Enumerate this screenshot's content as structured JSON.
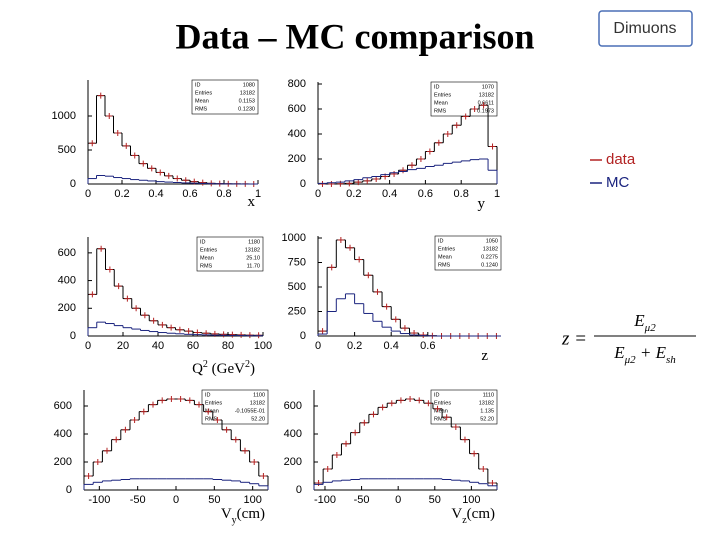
{
  "title": "Data – MC comparison",
  "badge": "Dimuons",
  "formula": {
    "lhs": "z =",
    "numerator": [
      "E",
      "μ2"
    ],
    "denominator": [
      "E",
      "μ2",
      " + E",
      "sh"
    ]
  },
  "chart_data": [
    {
      "type": "histogram",
      "xlabel": [
        "x"
      ],
      "xlabel_script": "sub",
      "bins": [
        0,
        0.05,
        0.1,
        0.15,
        0.2,
        0.25,
        0.3,
        0.35,
        0.4,
        0.45,
        0.5,
        0.55,
        0.6,
        0.65,
        0.7,
        0.75,
        0.8,
        0.85,
        0.9,
        0.95,
        1
      ],
      "series": [
        {
          "name": "data",
          "color": "#b22222",
          "values": [
            600,
            1300,
            1000,
            750,
            560,
            420,
            300,
            230,
            170,
            120,
            80,
            55,
            35,
            20,
            10,
            5,
            3,
            2,
            1,
            0
          ]
        },
        {
          "name": "MC",
          "color": "#1a237e",
          "values": [
            80,
            125,
            115,
            95,
            80,
            65,
            55,
            45,
            35,
            28,
            22,
            16,
            12,
            8,
            5,
            3,
            2,
            1,
            0,
            0
          ]
        }
      ],
      "xlim": [
        0,
        1
      ],
      "xticks": [
        0,
        0.2,
        0.4,
        0.6,
        0.8,
        1
      ],
      "ylim": [
        0,
        1500
      ],
      "yticks": [
        0,
        500,
        1000
      ],
      "stats": [
        [
          "ID",
          "1080"
        ],
        [
          "Entries",
          "13182"
        ],
        [
          "Mean",
          "0.1153"
        ],
        [
          "RMS",
          "0.1230"
        ]
      ]
    },
    {
      "type": "histogram",
      "xlabel": [
        "y"
      ],
      "xlabel_script": "sub",
      "bins": [
        0,
        0.05,
        0.1,
        0.15,
        0.2,
        0.25,
        0.3,
        0.35,
        0.4,
        0.45,
        0.5,
        0.55,
        0.6,
        0.65,
        0.7,
        0.75,
        0.8,
        0.85,
        0.9,
        0.95,
        1
      ],
      "series": [
        {
          "color": "#b22222",
          "values": [
            0,
            0,
            2,
            5,
            15,
            25,
            40,
            60,
            80,
            110,
            150,
            200,
            260,
            330,
            400,
            470,
            540,
            600,
            630,
            300
          ]
        },
        {
          "color": "#1a237e",
          "values": [
            5,
            10,
            15,
            25,
            35,
            50,
            60,
            75,
            90,
            100,
            115,
            125,
            140,
            150,
            165,
            175,
            185,
            195,
            200,
            110
          ]
        }
      ],
      "xlim": [
        0,
        1
      ],
      "xticks": [
        0,
        0.2,
        0.4,
        0.6,
        0.8,
        1
      ],
      "ylim": [
        0,
        800
      ],
      "yticks": [
        0,
        200,
        400,
        600,
        800
      ],
      "stats": [
        [
          "ID",
          "1070"
        ],
        [
          "Entries",
          "13182"
        ],
        [
          "Mean",
          "0.6611"
        ],
        [
          "RMS",
          "0.1973"
        ]
      ]
    },
    {
      "type": "histogram",
      "xlabel": [
        "Q",
        "2",
        " (GeV",
        "2",
        ")"
      ],
      "xlabel_script": "sup",
      "bins": [
        0,
        5,
        10,
        15,
        20,
        25,
        30,
        35,
        40,
        45,
        50,
        55,
        60,
        65,
        70,
        75,
        80,
        85,
        90,
        95,
        100
      ],
      "series": [
        {
          "color": "#b22222",
          "values": [
            300,
            630,
            480,
            360,
            270,
            200,
            150,
            110,
            80,
            60,
            45,
            35,
            25,
            20,
            15,
            12,
            10,
            8,
            6,
            5
          ]
        },
        {
          "color": "#1a237e",
          "values": [
            60,
            100,
            90,
            75,
            60,
            50,
            40,
            32,
            25,
            20,
            16,
            12,
            10,
            8,
            6,
            5,
            4,
            3,
            2,
            2
          ]
        }
      ],
      "xlim": [
        0,
        100
      ],
      "xticks": [
        0,
        20,
        40,
        60,
        80,
        100
      ],
      "ylim": [
        0,
        700
      ],
      "yticks": [
        0,
        200,
        400,
        600
      ],
      "stats": [
        [
          "ID",
          "1180"
        ],
        [
          "Entries",
          "13182"
        ],
        [
          "Mean",
          "25.10"
        ],
        [
          "RMS",
          "11.70"
        ]
      ]
    },
    {
      "type": "histogram",
      "xlabel": [
        "z"
      ],
      "xlabel_script": "sub",
      "bins": [
        0,
        0.05,
        0.1,
        0.15,
        0.2,
        0.25,
        0.3,
        0.35,
        0.4,
        0.45,
        0.5,
        0.55,
        0.6,
        0.65,
        0.7,
        0.75,
        0.8,
        0.85,
        0.9,
        0.95,
        1
      ],
      "series": [
        {
          "color": "#b22222",
          "values": [
            50,
            700,
            980,
            900,
            780,
            620,
            450,
            300,
            170,
            80,
            30,
            10,
            3,
            0,
            0,
            0,
            0,
            0,
            0,
            0
          ]
        },
        {
          "color": "#1a237e",
          "values": [
            20,
            250,
            380,
            430,
            330,
            230,
            150,
            90,
            50,
            25,
            10,
            4,
            1,
            0,
            0,
            0,
            0,
            0,
            0,
            0
          ]
        }
      ],
      "xlim": [
        0,
        1
      ],
      "xticks": [
        0,
        0.2,
        0.4,
        0.6
      ],
      "ylim": [
        0,
        1000
      ],
      "yticks": [
        0,
        250,
        500,
        750,
        1000
      ],
      "stats": [
        [
          "ID",
          "1050"
        ],
        [
          "Entries",
          "13182"
        ],
        [
          "Mean",
          "0.2275"
        ],
        [
          "RMS",
          "0.1240"
        ]
      ]
    },
    {
      "type": "histogram",
      "xlabel": [
        "V",
        "y",
        "(cm)"
      ],
      "xlabel_script": "sub",
      "bins": [
        -120,
        -108,
        -96,
        -84,
        -72,
        -60,
        -48,
        -36,
        -24,
        -12,
        0,
        12,
        24,
        36,
        48,
        60,
        72,
        84,
        96,
        108,
        120
      ],
      "series": [
        {
          "color": "#b22222",
          "values": [
            100,
            200,
            280,
            360,
            430,
            500,
            560,
            610,
            640,
            650,
            650,
            640,
            610,
            560,
            500,
            430,
            360,
            280,
            200,
            100
          ]
        },
        {
          "color": "#1a237e",
          "values": [
            40,
            55,
            65,
            70,
            75,
            80,
            80,
            80,
            80,
            80,
            80,
            80,
            80,
            80,
            75,
            70,
            65,
            55,
            45,
            30
          ]
        }
      ],
      "xlim": [
        -120,
        120
      ],
      "xticks": [
        -100,
        -50,
        0,
        50,
        100
      ],
      "ylim": [
        0,
        700
      ],
      "yticks": [
        0,
        200,
        400,
        600
      ],
      "stats": [
        [
          "ID",
          "1100"
        ],
        [
          "Entries",
          "13182"
        ],
        [
          "Mean",
          "-0.1055E-01"
        ],
        [
          "RMS",
          "52.20"
        ]
      ]
    },
    {
      "type": "histogram",
      "xlabel": [
        "V",
        "z",
        "(cm)"
      ],
      "xlabel_script": "sub",
      "bins": [
        -115,
        -102.5,
        -90,
        -77.5,
        -65,
        -52.5,
        -40,
        -27.5,
        -15,
        -2.5,
        10,
        22.5,
        35,
        47.5,
        60,
        72.5,
        85,
        97.5,
        110,
        122.5,
        135
      ],
      "series": [
        {
          "color": "#b22222",
          "values": [
            50,
            150,
            250,
            330,
            410,
            480,
            540,
            590,
            620,
            640,
            650,
            640,
            620,
            580,
            520,
            450,
            360,
            260,
            150,
            50
          ]
        },
        {
          "color": "#1a237e",
          "values": [
            40,
            55,
            65,
            70,
            75,
            80,
            80,
            80,
            80,
            80,
            80,
            80,
            80,
            80,
            75,
            70,
            65,
            55,
            45,
            30
          ]
        }
      ],
      "xlim": [
        -115,
        135
      ],
      "xticks": [
        -100,
        -50,
        0,
        50,
        100
      ],
      "ylim": [
        0,
        700
      ],
      "yticks": [
        0,
        200,
        400,
        600
      ],
      "stats": [
        [
          "ID",
          "1110"
        ],
        [
          "Entries",
          "13182"
        ],
        [
          "Mean",
          "1.135"
        ],
        [
          "RMS",
          "52.20"
        ]
      ]
    }
  ]
}
